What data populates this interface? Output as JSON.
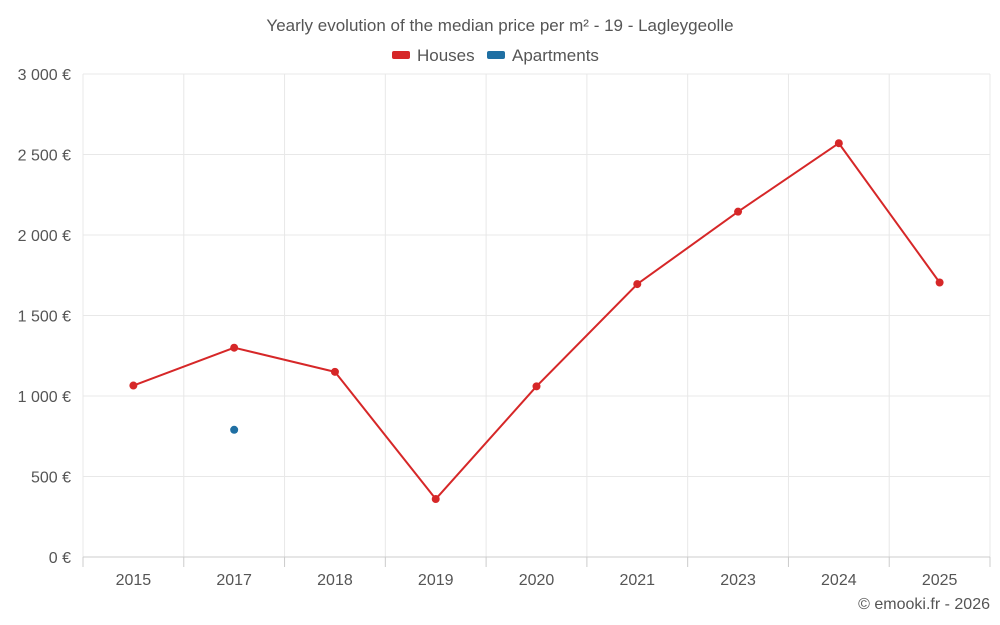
{
  "chart_data": {
    "type": "line",
    "title": "Yearly evolution of the median price per m² - 19 - Lagleygeolle",
    "categories": [
      "2015",
      "2017",
      "2018",
      "2019",
      "2020",
      "2021",
      "2023",
      "2024",
      "2025"
    ],
    "y_tick_labels": [
      "0 €",
      "500 €",
      "1 000 €",
      "1 500 €",
      "2 000 €",
      "2 500 €",
      "3 000 €"
    ],
    "y_ticks": [
      0,
      500,
      1000,
      1500,
      2000,
      2500,
      3000
    ],
    "ylim": [
      0,
      3000
    ],
    "grid": true,
    "legend_position": "top-center",
    "series": [
      {
        "name": "Houses",
        "color": "#d62728",
        "values": [
          1065,
          1300,
          1150,
          360,
          1060,
          1695,
          2145,
          2570,
          1705
        ]
      },
      {
        "name": "Apartments",
        "color": "#1f6fa3",
        "values": [
          null,
          790,
          null,
          null,
          null,
          null,
          null,
          null,
          null
        ]
      }
    ],
    "credit": "© emooki.fr - 2026"
  }
}
